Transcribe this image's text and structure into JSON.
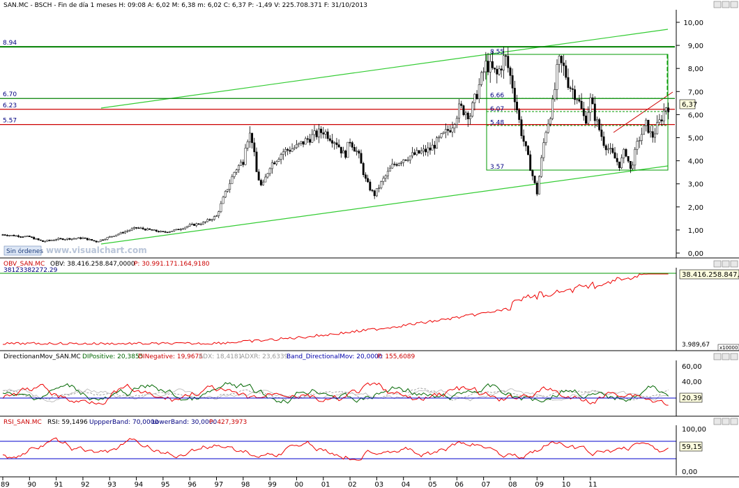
{
  "price_panel": {
    "header": "SAN.MC - BSCH - Fin de día 1 meses  H: 09:08  A: 6,02  M: 6,38  m: 6,02  C: 6,37  P: -1,49  V: 225.708.371  F: 31/10/2013",
    "watermark": "www.visualchart.com",
    "sin_ordenes_label": "Sin órdenes",
    "last_value_box": "6,37",
    "yaxis_ticks": [
      "0,00",
      "1,00",
      "2,00",
      "3,00",
      "4,00",
      "5,00",
      "6,00",
      "7,00",
      "8,00",
      "9,00",
      "10,00"
    ],
    "level_lines": [
      {
        "value": 8.94,
        "label": "8.94",
        "color": "#008000"
      },
      {
        "value": 6.7,
        "label": "6.70",
        "color": "#008000"
      },
      {
        "value": 6.23,
        "label": "6.23",
        "color": "#cc0000"
      },
      {
        "value": 5.57,
        "label": "5.57",
        "color": "#cc0000"
      }
    ],
    "fib_labels": [
      {
        "value": 8.55,
        "label": "8.55"
      },
      {
        "value": 6.66,
        "label": "6.66"
      },
      {
        "value": 6.07,
        "label": "6.07"
      },
      {
        "value": 5.48,
        "label": "5.48"
      },
      {
        "value": 3.57,
        "label": "3.57"
      }
    ]
  },
  "obv_panel": {
    "header_name": "OBV_SAN.MC",
    "header_obv": "OBV: 38.416.258.847,0000",
    "header_p": "P: 30.991.171.164,9180",
    "level_label": "38123382272.29",
    "last_value_box": "38.416.258.847,0",
    "axis_low": "3.989,67",
    "scale_tag": "x10000"
  },
  "dm_panel": {
    "header_name": "DirectionanMov_SAN.MC",
    "header_dipos": "DIPositive: 20,3855",
    "header_dineg": "DINegative: 19,9675",
    "header_adx": "ADX: 18,4181",
    "header_adxr": "ADXR: 23,6339",
    "header_band": "Band_DirectionalMov: 20,0000",
    "header_p": "P: 155,6089",
    "yaxis_ticks": [
      "40,00",
      "60,00"
    ],
    "last_value_box": "20,39"
  },
  "rsi_panel": {
    "header_name": "RSI_SAN.MC",
    "header_rsi": "RSI: 59,1496",
    "header_upper": "UppperBand: 70,0000",
    "header_lower": "LowerBand: 30,0000",
    "header_p": "P: 427,3973",
    "yaxis_ticks": [
      "0,00",
      "100,00"
    ],
    "last_value_box": "59,15"
  },
  "xaxis_labels": [
    "89",
    "90",
    "91",
    "92",
    "93",
    "94",
    "95",
    "96",
    "97",
    "98",
    "99",
    "00",
    "01",
    "02",
    "03",
    "04",
    "05",
    "06",
    "07",
    "08",
    "09",
    "10",
    "11"
  ],
  "chart_data": {
    "type": "candlestick",
    "title": "SAN.MC - BSCH - Fin de día 1 meses",
    "x_unit": "year",
    "price_ylim": [
      0,
      10
    ],
    "price_path_approx": [
      [
        1989.0,
        0.8
      ],
      [
        1990.0,
        0.7
      ],
      [
        1990.5,
        0.5
      ],
      [
        1991.0,
        0.6
      ],
      [
        1992.0,
        0.65
      ],
      [
        1992.5,
        0.5
      ],
      [
        1993.0,
        0.7
      ],
      [
        1993.5,
        0.9
      ],
      [
        1994.0,
        1.1
      ],
      [
        1994.5,
        1.0
      ],
      [
        1995.0,
        0.9
      ],
      [
        1995.5,
        1.0
      ],
      [
        1996.0,
        1.2
      ],
      [
        1996.5,
        1.3
      ],
      [
        1997.0,
        1.6
      ],
      [
        1997.3,
        2.5
      ],
      [
        1997.7,
        3.6
      ],
      [
        1998.0,
        4.0
      ],
      [
        1998.1,
        4.9
      ],
      [
        1998.3,
        5.2
      ],
      [
        1998.5,
        3.5
      ],
      [
        1998.7,
        2.8
      ],
      [
        1999.0,
        3.8
      ],
      [
        1999.5,
        4.4
      ],
      [
        2000.0,
        4.6
      ],
      [
        2000.5,
        5.0
      ],
      [
        2001.0,
        5.3
      ],
      [
        2001.5,
        4.8
      ],
      [
        2001.8,
        4.2
      ],
      [
        2002.0,
        4.9
      ],
      [
        2002.3,
        4.3
      ],
      [
        2002.6,
        3.1
      ],
      [
        2002.9,
        2.5
      ],
      [
        2003.2,
        3.1
      ],
      [
        2003.6,
        3.8
      ],
      [
        2004.0,
        4.1
      ],
      [
        2004.5,
        4.3
      ],
      [
        2005.0,
        4.5
      ],
      [
        2005.5,
        5.1
      ],
      [
        2005.8,
        5.5
      ],
      [
        2006.1,
        6.3
      ],
      [
        2006.5,
        6.0
      ],
      [
        2006.9,
        7.5
      ],
      [
        2007.1,
        8.2
      ],
      [
        2007.5,
        7.7
      ],
      [
        2007.8,
        8.55
      ],
      [
        2008.1,
        7.2
      ],
      [
        2008.4,
        5.3
      ],
      [
        2008.8,
        3.5
      ],
      [
        2009.0,
        2.6
      ],
      [
        2009.3,
        5.2
      ],
      [
        2009.6,
        6.5
      ],
      [
        2009.8,
        8.3
      ],
      [
        2010.0,
        8.0
      ],
      [
        2010.2,
        7.3
      ],
      [
        2010.5,
        6.8
      ],
      [
        2010.8,
        5.7
      ],
      [
        2011.0,
        6.6
      ],
      [
        2011.2,
        5.8
      ],
      [
        2011.5,
        4.8
      ],
      [
        2011.8,
        4.3
      ],
      [
        2012.1,
        3.8
      ],
      [
        2012.3,
        4.5
      ],
      [
        2012.5,
        3.6
      ],
      [
        2012.8,
        4.9
      ],
      [
        2013.1,
        5.6
      ],
      [
        2013.3,
        5.0
      ],
      [
        2013.6,
        5.7
      ],
      [
        2013.83,
        6.37
      ]
    ]
  }
}
